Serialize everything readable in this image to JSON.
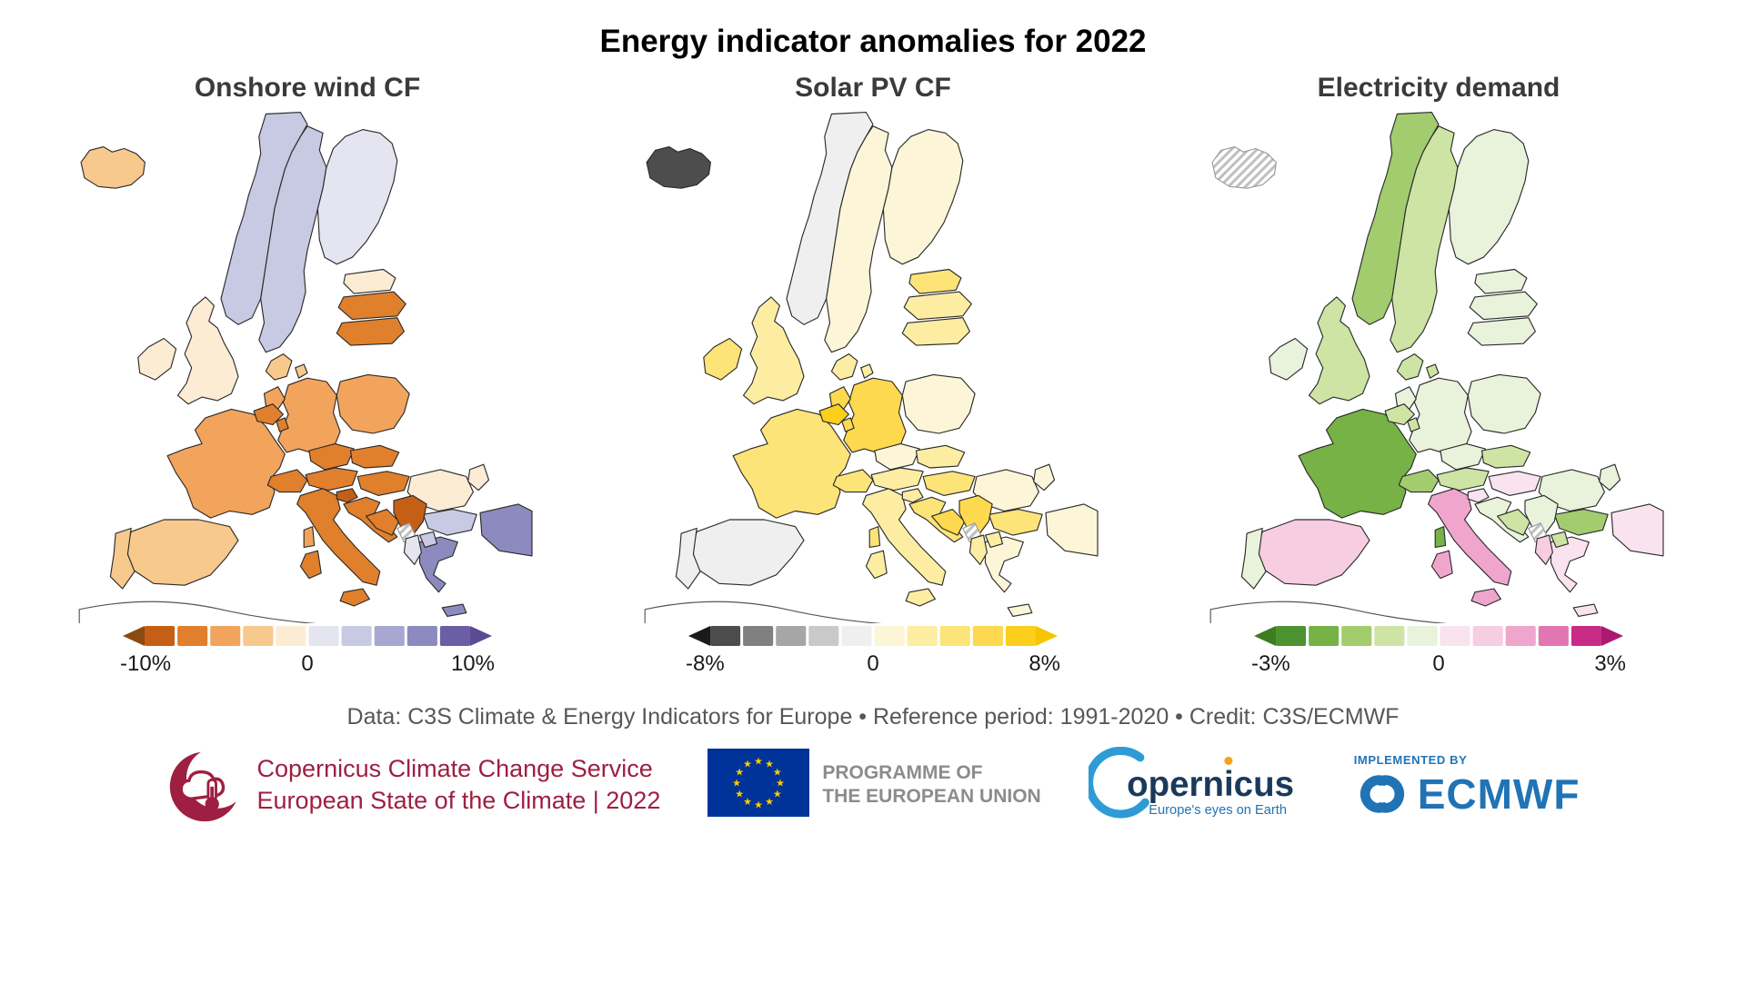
{
  "title": "Energy indicator anomalies for 2022",
  "credit_line": "Data: C3S Climate & Energy Indicators for Europe • Reference period: 1991-2020 • Credit: C3S/ECMWF",
  "logos": {
    "c3s": {
      "line1": "Copernicus Climate Change Service",
      "line2": "European State of the Climate | 2022",
      "color": "#9e1f42"
    },
    "eu": {
      "text_line1": "PROGRAMME OF",
      "text_line2": "THE EUROPEAN UNION",
      "flag_blue": "#003399",
      "star_color": "#ffcc00",
      "text_color": "#8c8c8c"
    },
    "copernicus": {
      "wordmark": "opernicus",
      "tagline": "Europe's eyes on Earth",
      "navy": "#1a3a5c",
      "swoosh_blue": "#2e9bd6",
      "tagline_blue": "#2073b5",
      "dot_orange": "#f5a21b"
    },
    "ecmwf": {
      "implemented_by": "IMPLEMENTED BY",
      "wordmark": "ECMWF",
      "blue": "#2073b5"
    }
  },
  "chart_data": {
    "type": "heatmap",
    "subtype": "choropleth-maps-europe",
    "unit": "% anomaly relative to reference period 1991-2020",
    "no_data_style": "diagonal-hatch",
    "maps": [
      {
        "title": "Onshore wind CF",
        "legend": {
          "min": "-10%",
          "zero": "0",
          "max": "10%",
          "range": [
            -10,
            10
          ],
          "colors": [
            "#c55f16",
            "#e07f2c",
            "#f2a45c",
            "#f8c98c",
            "#fdecd4",
            "#e4e5f0",
            "#c8c9e2",
            "#a7a7d1",
            "#8c8abf",
            "#6a5fa7"
          ],
          "arrow_left": "#8a4a12",
          "arrow_right": "#5b4b94"
        },
        "countries": [
          {
            "code": "GB",
            "name": "United Kingdom",
            "value_pct": -1,
            "color": "#fdecd4"
          },
          {
            "code": "IE",
            "name": "Ireland",
            "value_pct": -1,
            "color": "#fdecd4"
          },
          {
            "code": "NO",
            "name": "Norway",
            "value_pct": 3,
            "color": "#c8c9e2"
          },
          {
            "code": "SE",
            "name": "Sweden",
            "value_pct": 3,
            "color": "#c8c9e2"
          },
          {
            "code": "FI",
            "name": "Finland",
            "value_pct": 1,
            "color": "#e4e5f0"
          },
          {
            "code": "IS",
            "name": "Iceland",
            "value_pct": -3,
            "color": "#f8c98c"
          },
          {
            "code": "EE",
            "name": "Estonia",
            "value_pct": -1,
            "color": "#fdecd4"
          },
          {
            "code": "LV",
            "name": "Latvia",
            "value_pct": -7,
            "color": "#e07f2c"
          },
          {
            "code": "LT",
            "name": "Lithuania",
            "value_pct": -7,
            "color": "#e07f2c"
          },
          {
            "code": "DK",
            "name": "Denmark",
            "value_pct": -3,
            "color": "#f8c98c"
          },
          {
            "code": "FR",
            "name": "France",
            "value_pct": -5,
            "color": "#f2a45c"
          },
          {
            "code": "DE",
            "name": "Germany",
            "value_pct": -5,
            "color": "#f2a45c"
          },
          {
            "code": "PL",
            "name": "Poland",
            "value_pct": -5,
            "color": "#f2a45c"
          },
          {
            "code": "ES",
            "name": "Spain",
            "value_pct": -3,
            "color": "#f8c98c"
          },
          {
            "code": "PT",
            "name": "Portugal",
            "value_pct": -3,
            "color": "#f8c98c"
          },
          {
            "code": "CZ",
            "name": "Czechia",
            "value_pct": -7,
            "color": "#e07f2c"
          },
          {
            "code": "SK",
            "name": "Slovakia",
            "value_pct": -7,
            "color": "#e07f2c"
          },
          {
            "code": "AT",
            "name": "Austria",
            "value_pct": -7,
            "color": "#e07f2c"
          },
          {
            "code": "CH",
            "name": "Switzerland",
            "value_pct": -7,
            "color": "#e07f2c"
          },
          {
            "code": "NL",
            "name": "Netherlands",
            "value_pct": -5,
            "color": "#f2a45c"
          },
          {
            "code": "BE",
            "name": "Belgium",
            "value_pct": -7,
            "color": "#e07f2c"
          },
          {
            "code": "LU",
            "name": "Luxembourg",
            "value_pct": -7,
            "color": "#e07f2c"
          },
          {
            "code": "HU",
            "name": "Hungary",
            "value_pct": -7,
            "color": "#e07f2c"
          },
          {
            "code": "RO",
            "name": "Romania",
            "value_pct": -1,
            "color": "#fdecd4"
          },
          {
            "code": "MD",
            "name": "Moldova",
            "value_pct": -1,
            "color": "#fdecd4"
          },
          {
            "code": "BG",
            "name": "Bulgaria",
            "value_pct": 3,
            "color": "#c8c9e2"
          },
          {
            "code": "TR",
            "name": "Turkiye",
            "value_pct": 7,
            "color": "#8c8abf"
          },
          {
            "code": "GR",
            "name": "Greece",
            "value_pct": 7,
            "color": "#8c8abf"
          },
          {
            "code": "IT",
            "name": "Italy",
            "value_pct": -7,
            "color": "#e07f2c"
          },
          {
            "code": "SI",
            "name": "Slovenia",
            "value_pct": -9,
            "color": "#c55f16"
          },
          {
            "code": "HR",
            "name": "Croatia",
            "value_pct": -7,
            "color": "#e07f2c"
          },
          {
            "code": "BA",
            "name": "Bosnia and Herzegovina",
            "value_pct": -7,
            "color": "#e07f2c"
          },
          {
            "code": "RS",
            "name": "Serbia",
            "value_pct": -9,
            "color": "#c55f16"
          },
          {
            "code": "ME-XK",
            "name": "Montenegro-Kosovo (no data)",
            "value_pct": null,
            "color": "hatch"
          },
          {
            "code": "AL",
            "name": "Albania",
            "value_pct": 1,
            "color": "#e4e5f0"
          },
          {
            "code": "MK",
            "name": "North Macedonia",
            "value_pct": 3,
            "color": "#c8c9e2"
          }
        ]
      },
      {
        "title": "Solar PV CF",
        "legend": {
          "min": "-8%",
          "zero": "0",
          "max": "8%",
          "range": [
            -8,
            8
          ],
          "colors": [
            "#4d4d4d",
            "#808080",
            "#a6a6a6",
            "#c9c9c9",
            "#efefef",
            "#fdf5d7",
            "#fdeda2",
            "#fce478",
            "#fcd94e",
            "#fccf1d"
          ],
          "arrow_left": "#1a1a1a",
          "arrow_right": "#f6c400"
        },
        "countries": [
          {
            "code": "GB",
            "name": "United Kingdom",
            "value_pct": 2,
            "color": "#fdeda2"
          },
          {
            "code": "IE",
            "name": "Ireland",
            "value_pct": 4,
            "color": "#fce478"
          },
          {
            "code": "NO",
            "name": "Norway",
            "value_pct": -1,
            "color": "#efefef"
          },
          {
            "code": "SE",
            "name": "Sweden",
            "value_pct": 1,
            "color": "#fdf5d7"
          },
          {
            "code": "FI",
            "name": "Finland",
            "value_pct": 1,
            "color": "#fdf5d7"
          },
          {
            "code": "IS",
            "name": "Iceland",
            "value_pct": -7,
            "color": "#4d4d4d"
          },
          {
            "code": "EE",
            "name": "Estonia",
            "value_pct": 4,
            "color": "#fce478"
          },
          {
            "code": "LV",
            "name": "Latvia",
            "value_pct": 2,
            "color": "#fdeda2"
          },
          {
            "code": "LT",
            "name": "Lithuania",
            "value_pct": 2,
            "color": "#fdeda2"
          },
          {
            "code": "DK",
            "name": "Denmark",
            "value_pct": 2,
            "color": "#fdeda2"
          },
          {
            "code": "FR",
            "name": "France",
            "value_pct": 4,
            "color": "#fce478"
          },
          {
            "code": "DE",
            "name": "Germany",
            "value_pct": 6,
            "color": "#fcd94e"
          },
          {
            "code": "PL",
            "name": "Poland",
            "value_pct": 1,
            "color": "#fdf5d7"
          },
          {
            "code": "ES",
            "name": "Spain",
            "value_pct": -1,
            "color": "#efefef"
          },
          {
            "code": "PT",
            "name": "Portugal",
            "value_pct": -1,
            "color": "#efefef"
          },
          {
            "code": "CZ",
            "name": "Czechia",
            "value_pct": 1,
            "color": "#fdf5d7"
          },
          {
            "code": "SK",
            "name": "Slovakia",
            "value_pct": 2,
            "color": "#fdeda2"
          },
          {
            "code": "AT",
            "name": "Austria",
            "value_pct": 2,
            "color": "#fdeda2"
          },
          {
            "code": "CH",
            "name": "Switzerland",
            "value_pct": 4,
            "color": "#fce478"
          },
          {
            "code": "NL",
            "name": "Netherlands",
            "value_pct": 6,
            "color": "#fcd94e"
          },
          {
            "code": "BE",
            "name": "Belgium",
            "value_pct": 7,
            "color": "#fccf1d"
          },
          {
            "code": "LU",
            "name": "Luxembourg",
            "value_pct": 6,
            "color": "#fcd94e"
          },
          {
            "code": "HU",
            "name": "Hungary",
            "value_pct": 4,
            "color": "#fce478"
          },
          {
            "code": "RO",
            "name": "Romania",
            "value_pct": 1,
            "color": "#fdf5d7"
          },
          {
            "code": "MD",
            "name": "Moldova",
            "value_pct": 1,
            "color": "#fdf5d7"
          },
          {
            "code": "BG",
            "name": "Bulgaria",
            "value_pct": 4,
            "color": "#fce478"
          },
          {
            "code": "TR",
            "name": "Turkiye",
            "value_pct": 1,
            "color": "#fdf5d7"
          },
          {
            "code": "GR",
            "name": "Greece",
            "value_pct": 1,
            "color": "#fdf5d7"
          },
          {
            "code": "IT",
            "name": "Italy",
            "value_pct": 2,
            "color": "#fdeda2"
          },
          {
            "code": "SI",
            "name": "Slovenia",
            "value_pct": 2,
            "color": "#fdeda2"
          },
          {
            "code": "HR",
            "name": "Croatia",
            "value_pct": 4,
            "color": "#fce478"
          },
          {
            "code": "BA",
            "name": "Bosnia and Herzegovina",
            "value_pct": 6,
            "color": "#fcd94e"
          },
          {
            "code": "RS",
            "name": "Serbia",
            "value_pct": 6,
            "color": "#fcd94e"
          },
          {
            "code": "ME-XK",
            "name": "Montenegro-Kosovo (no data)",
            "value_pct": null,
            "color": "hatch"
          },
          {
            "code": "AL",
            "name": "Albania",
            "value_pct": 2,
            "color": "#fdeda2"
          },
          {
            "code": "MK",
            "name": "North Macedonia",
            "value_pct": 2,
            "color": "#fdeda2"
          }
        ]
      },
      {
        "title": "Electricity demand",
        "legend": {
          "min": "-3%",
          "zero": "0",
          "max": "3%",
          "range": [
            -3,
            3
          ],
          "colors": [
            "#4c9230",
            "#76b246",
            "#a2cc6d",
            "#cde4a4",
            "#e9f2da",
            "#f9e3ee",
            "#f7cde1",
            "#f0a6cc",
            "#e176b2",
            "#c92c87"
          ],
          "arrow_left": "#3c7d1f",
          "arrow_right": "#ab1a70"
        },
        "countries": [
          {
            "code": "GB",
            "name": "United Kingdom",
            "value_pct": -0.9,
            "color": "#cde4a4"
          },
          {
            "code": "IE",
            "name": "Ireland",
            "value_pct": -0.3,
            "color": "#e9f2da"
          },
          {
            "code": "NO",
            "name": "Norway",
            "value_pct": -1.5,
            "color": "#a2cc6d"
          },
          {
            "code": "SE",
            "name": "Sweden",
            "value_pct": -0.9,
            "color": "#cde4a4"
          },
          {
            "code": "FI",
            "name": "Finland",
            "value_pct": -0.3,
            "color": "#e9f2da"
          },
          {
            "code": "IS",
            "name": "Iceland (no data)",
            "value_pct": null,
            "color": "hatch"
          },
          {
            "code": "EE",
            "name": "Estonia",
            "value_pct": -0.3,
            "color": "#e9f2da"
          },
          {
            "code": "LV",
            "name": "Latvia",
            "value_pct": -0.3,
            "color": "#e9f2da"
          },
          {
            "code": "LT",
            "name": "Lithuania",
            "value_pct": -0.3,
            "color": "#e9f2da"
          },
          {
            "code": "DK",
            "name": "Denmark",
            "value_pct": -0.9,
            "color": "#cde4a4"
          },
          {
            "code": "FR",
            "name": "France",
            "value_pct": -2.1,
            "color": "#76b246"
          },
          {
            "code": "DE",
            "name": "Germany",
            "value_pct": -0.3,
            "color": "#e9f2da"
          },
          {
            "code": "PL",
            "name": "Poland",
            "value_pct": -0.3,
            "color": "#e9f2da"
          },
          {
            "code": "ES",
            "name": "Spain",
            "value_pct": 0.9,
            "color": "#f7cde1"
          },
          {
            "code": "PT",
            "name": "Portugal",
            "value_pct": -0.3,
            "color": "#e9f2da"
          },
          {
            "code": "CZ",
            "name": "Czechia",
            "value_pct": -0.3,
            "color": "#e9f2da"
          },
          {
            "code": "SK",
            "name": "Slovakia",
            "value_pct": -0.9,
            "color": "#cde4a4"
          },
          {
            "code": "AT",
            "name": "Austria",
            "value_pct": -0.9,
            "color": "#cde4a4"
          },
          {
            "code": "CH",
            "name": "Switzerland",
            "value_pct": -1.5,
            "color": "#a2cc6d"
          },
          {
            "code": "NL",
            "name": "Netherlands",
            "value_pct": -0.3,
            "color": "#e9f2da"
          },
          {
            "code": "BE",
            "name": "Belgium",
            "value_pct": -0.9,
            "color": "#cde4a4"
          },
          {
            "code": "LU",
            "name": "Luxembourg",
            "value_pct": -0.9,
            "color": "#cde4a4"
          },
          {
            "code": "HU",
            "name": "Hungary",
            "value_pct": 0.3,
            "color": "#f9e3ee"
          },
          {
            "code": "RO",
            "name": "Romania",
            "value_pct": -0.3,
            "color": "#e9f2da"
          },
          {
            "code": "MD",
            "name": "Moldova",
            "value_pct": -0.3,
            "color": "#e9f2da"
          },
          {
            "code": "BG",
            "name": "Bulgaria",
            "value_pct": -1.5,
            "color": "#a2cc6d"
          },
          {
            "code": "TR",
            "name": "Turkiye",
            "value_pct": 0.3,
            "color": "#f9e3ee"
          },
          {
            "code": "GR",
            "name": "Greece",
            "value_pct": 0.3,
            "color": "#f9e3ee"
          },
          {
            "code": "IT",
            "name": "Italy",
            "value_pct": 1.5,
            "color": "#f0a6cc"
          },
          {
            "code": "SI",
            "name": "Slovenia",
            "value_pct": 0.3,
            "color": "#f9e3ee"
          },
          {
            "code": "HR",
            "name": "Croatia",
            "value_pct": -0.3,
            "color": "#e9f2da"
          },
          {
            "code": "BA",
            "name": "Bosnia and Herzegovina",
            "value_pct": -0.9,
            "color": "#cde4a4"
          },
          {
            "code": "RS",
            "name": "Serbia",
            "value_pct": -0.3,
            "color": "#e9f2da"
          },
          {
            "code": "ME-XK",
            "name": "Montenegro-Kosovo (no data)",
            "value_pct": null,
            "color": "hatch"
          },
          {
            "code": "AL",
            "name": "Albania",
            "value_pct": 0.9,
            "color": "#f7cde1"
          },
          {
            "code": "MK",
            "name": "North Macedonia",
            "value_pct": -0.9,
            "color": "#cde4a4"
          }
        ]
      }
    ]
  }
}
